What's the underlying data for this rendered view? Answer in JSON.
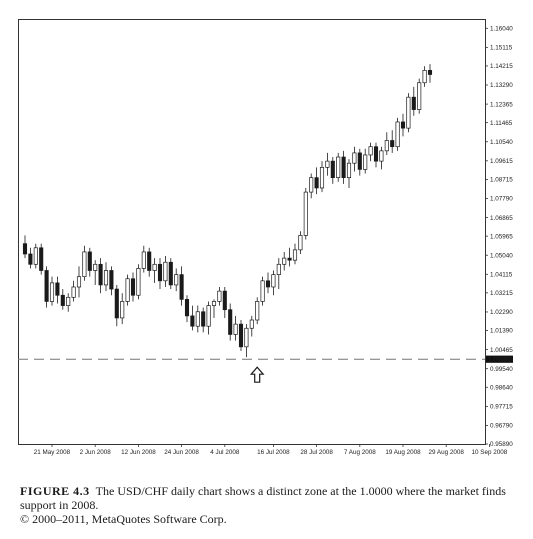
{
  "chart_data": {
    "type": "candlestick",
    "title": "",
    "xlabel": "",
    "ylabel": "",
    "ylim": [
      0.9589,
      1.1649
    ],
    "grid": false,
    "y_ticks": [
      "1.16040",
      "1.15115",
      "1.14215",
      "1.13290",
      "1.12365",
      "1.11465",
      "1.10540",
      "1.09615",
      "1.08715",
      "1.07790",
      "1.06865",
      "1.05965",
      "1.05040",
      "1.04115",
      "1.03215",
      "1.02290",
      "1.01390",
      "1.00465",
      "0.99540",
      "0.98640",
      "0.97715",
      "0.96790",
      "0.95890"
    ],
    "highlighted_y_label": "1.00000",
    "x_ticks": [
      {
        "label": "21 May 2008",
        "index": 5
      },
      {
        "label": "2 Jun 2008",
        "index": 13
      },
      {
        "label": "12 Jun 2008",
        "index": 21
      },
      {
        "label": "24 Jun 2008",
        "index": 29
      },
      {
        "label": "4 Jul 2008",
        "index": 37
      },
      {
        "label": "16 Jul 2008",
        "index": 46
      },
      {
        "label": "28 Jul 2008",
        "index": 54
      },
      {
        "label": "7 Aug 2008",
        "index": 62
      },
      {
        "label": "19 Aug 2008",
        "index": 70
      },
      {
        "label": "29 Aug 2008",
        "index": 78
      },
      {
        "label": "10 Sep 2008",
        "index": 86
      }
    ],
    "support_level": 1.0,
    "support_arrow_index": 43,
    "candles": [
      [
        1.056,
        1.06,
        1.049,
        1.051
      ],
      [
        1.051,
        1.054,
        1.044,
        1.046
      ],
      [
        1.046,
        1.056,
        1.044,
        1.054
      ],
      [
        1.054,
        1.056,
        1.041,
        1.043
      ],
      [
        1.043,
        1.045,
        1.025,
        1.028
      ],
      [
        1.028,
        1.04,
        1.026,
        1.037
      ],
      [
        1.037,
        1.04,
        1.027,
        1.031
      ],
      [
        1.031,
        1.034,
        1.024,
        1.026
      ],
      [
        1.026,
        1.032,
        1.023,
        1.03
      ],
      [
        1.03,
        1.038,
        1.028,
        1.035
      ],
      [
        1.035,
        1.045,
        1.03,
        1.04
      ],
      [
        1.04,
        1.055,
        1.038,
        1.052
      ],
      [
        1.052,
        1.054,
        1.04,
        1.043
      ],
      [
        1.043,
        1.048,
        1.036,
        1.046
      ],
      [
        1.046,
        1.049,
        1.032,
        1.036
      ],
      [
        1.036,
        1.047,
        1.033,
        1.043
      ],
      [
        1.043,
        1.045,
        1.031,
        1.034
      ],
      [
        1.034,
        1.036,
        1.016,
        1.02
      ],
      [
        1.02,
        1.032,
        1.017,
        1.028
      ],
      [
        1.028,
        1.041,
        1.026,
        1.039
      ],
      [
        1.039,
        1.042,
        1.028,
        1.031
      ],
      [
        1.031,
        1.046,
        1.029,
        1.044
      ],
      [
        1.044,
        1.055,
        1.042,
        1.052
      ],
      [
        1.052,
        1.054,
        1.04,
        1.043
      ],
      [
        1.043,
        1.049,
        1.037,
        1.046
      ],
      [
        1.046,
        1.049,
        1.034,
        1.038
      ],
      [
        1.038,
        1.05,
        1.035,
        1.047
      ],
      [
        1.047,
        1.049,
        1.034,
        1.036
      ],
      [
        1.036,
        1.044,
        1.033,
        1.041
      ],
      [
        1.041,
        1.045,
        1.026,
        1.029
      ],
      [
        1.029,
        1.031,
        1.018,
        1.021
      ],
      [
        1.021,
        1.026,
        1.014,
        1.016
      ],
      [
        1.016,
        1.026,
        1.013,
        1.023
      ],
      [
        1.023,
        1.025,
        1.013,
        1.016
      ],
      [
        1.016,
        1.028,
        1.012,
        1.026
      ],
      [
        1.026,
        1.029,
        1.02,
        1.028
      ],
      [
        1.028,
        1.035,
        1.026,
        1.033
      ],
      [
        1.033,
        1.035,
        1.02,
        1.024
      ],
      [
        1.024,
        1.027,
        1.009,
        1.012
      ],
      [
        1.012,
        1.021,
        1.009,
        1.017
      ],
      [
        1.017,
        1.019,
        1.004,
        1.006
      ],
      [
        1.006,
        1.017,
        1.001,
        1.015
      ],
      [
        1.015,
        1.021,
        1.011,
        1.019
      ],
      [
        1.019,
        1.03,
        1.017,
        1.028
      ],
      [
        1.028,
        1.04,
        1.026,
        1.038
      ],
      [
        1.038,
        1.042,
        1.032,
        1.035
      ],
      [
        1.035,
        1.043,
        1.031,
        1.041
      ],
      [
        1.041,
        1.049,
        1.034,
        1.046
      ],
      [
        1.046,
        1.052,
        1.043,
        1.049
      ],
      [
        1.049,
        1.054,
        1.045,
        1.048
      ],
      [
        1.048,
        1.056,
        1.046,
        1.053
      ],
      [
        1.053,
        1.062,
        1.051,
        1.06
      ],
      [
        1.06,
        1.083,
        1.058,
        1.081
      ],
      [
        1.081,
        1.09,
        1.078,
        1.088
      ],
      [
        1.088,
        1.093,
        1.08,
        1.083
      ],
      [
        1.083,
        1.096,
        1.081,
        1.093
      ],
      [
        1.093,
        1.1,
        1.089,
        1.096
      ],
      [
        1.096,
        1.098,
        1.085,
        1.088
      ],
      [
        1.088,
        1.1,
        1.086,
        1.098
      ],
      [
        1.098,
        1.101,
        1.085,
        1.088
      ],
      [
        1.088,
        1.097,
        1.083,
        1.095
      ],
      [
        1.095,
        1.103,
        1.091,
        1.1
      ],
      [
        1.1,
        1.102,
        1.089,
        1.092
      ],
      [
        1.092,
        1.102,
        1.09,
        1.099
      ],
      [
        1.099,
        1.105,
        1.096,
        1.103
      ],
      [
        1.103,
        1.105,
        1.093,
        1.096
      ],
      [
        1.096,
        1.103,
        1.092,
        1.101
      ],
      [
        1.101,
        1.11,
        1.099,
        1.106
      ],
      [
        1.106,
        1.111,
        1.1,
        1.103
      ],
      [
        1.103,
        1.117,
        1.101,
        1.115
      ],
      [
        1.115,
        1.119,
        1.108,
        1.112
      ],
      [
        1.112,
        1.129,
        1.11,
        1.127
      ],
      [
        1.127,
        1.132,
        1.118,
        1.121
      ],
      [
        1.121,
        1.136,
        1.119,
        1.134
      ],
      [
        1.134,
        1.142,
        1.132,
        1.14
      ],
      [
        1.14,
        1.143,
        1.134,
        1.138
      ]
    ]
  },
  "caption": {
    "figure_label": "FIGURE 4.3",
    "text": "The USD/CHF daily chart shows a distinct zone at the 1.0000 where the market finds support in 2008.",
    "copyright": "© 2000–2011, MetaQuotes Software Corp."
  },
  "colors": {
    "bull_fill": "#ffffff",
    "bear_fill": "#1a1a1a",
    "stroke": "#1a1a1a",
    "support_line": "#777777",
    "frame": "#333333"
  }
}
